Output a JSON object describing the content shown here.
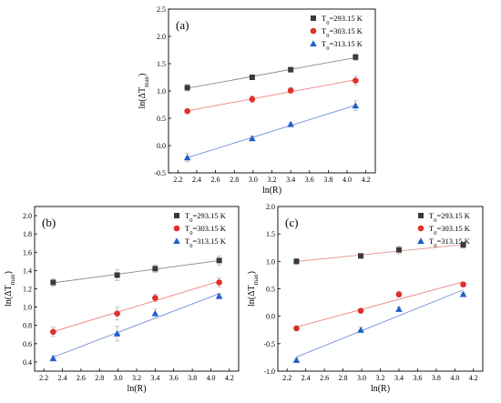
{
  "chart_data": [
    {
      "type": "scatter",
      "panel_label": "(a)",
      "xlabel": "ln(R)",
      "ylabel": "ln(ΔT_max)",
      "xlim": [
        2.1,
        4.3
      ],
      "ylim": [
        -0.5,
        2.5
      ],
      "xticks": [
        2.2,
        2.4,
        2.6,
        2.8,
        3.0,
        3.2,
        3.4,
        3.6,
        3.8,
        4.0,
        4.2
      ],
      "yticks": [
        -0.5,
        0.0,
        0.5,
        1.0,
        1.5,
        2.0,
        2.5
      ],
      "grid": false,
      "legend_position": "top-right",
      "series": [
        {
          "name": "T0=293.15 K",
          "marker": "square",
          "color": "#3a3a3a",
          "line_color": "#8a8a8a",
          "x": [
            2.3,
            2.99,
            3.4,
            4.09
          ],
          "y": [
            1.06,
            1.25,
            1.39,
            1.62
          ],
          "err": [
            0.06,
            0.04,
            0.03,
            0.06
          ]
        },
        {
          "name": "T0=303.15 K",
          "marker": "circle",
          "color": "#e0302a",
          "line_color": "#f08080",
          "x": [
            2.3,
            2.99,
            3.4,
            4.09
          ],
          "y": [
            0.63,
            0.85,
            1.01,
            1.19
          ],
          "err": [
            0.03,
            0.06,
            0.05,
            0.08
          ]
        },
        {
          "name": "T0=313.15 K",
          "marker": "triangle",
          "color": "#1f5fc9",
          "line_color": "#7090d8",
          "x": [
            2.3,
            2.99,
            3.4,
            4.09
          ],
          "y": [
            -0.22,
            0.13,
            0.39,
            0.73
          ],
          "err": [
            0.08,
            0.04,
            0.03,
            0.09
          ]
        }
      ]
    },
    {
      "type": "scatter",
      "panel_label": "(b)",
      "xlabel": "ln(R)",
      "ylabel": "ln(ΔT_max)",
      "xlim": [
        2.1,
        4.3
      ],
      "ylim": [
        0.3,
        2.1
      ],
      "xticks": [
        2.2,
        2.4,
        2.6,
        2.8,
        3.0,
        3.2,
        3.4,
        3.6,
        3.8,
        4.0,
        4.2
      ],
      "yticks": [
        0.4,
        0.6,
        0.8,
        1.0,
        1.2,
        1.4,
        1.6,
        1.8,
        2.0
      ],
      "grid": false,
      "legend_position": "top-right",
      "series": [
        {
          "name": "T0=293.15 K",
          "marker": "square",
          "color": "#3a3a3a",
          "line_color": "#8a8a8a",
          "x": [
            2.3,
            2.99,
            3.4,
            4.09
          ],
          "y": [
            1.27,
            1.35,
            1.42,
            1.51
          ],
          "err": [
            0.04,
            0.06,
            0.04,
            0.05
          ]
        },
        {
          "name": "T0=303.15 K",
          "marker": "circle",
          "color": "#e0302a",
          "line_color": "#f08080",
          "x": [
            2.3,
            2.99,
            3.4,
            4.09
          ],
          "y": [
            0.73,
            0.93,
            1.1,
            1.27
          ],
          "err": [
            0.05,
            0.07,
            0.04,
            0.05
          ]
        },
        {
          "name": "T0=313.15 K",
          "marker": "triangle",
          "color": "#1f5fc9",
          "line_color": "#7090d8",
          "x": [
            2.3,
            2.99,
            3.4,
            4.09
          ],
          "y": [
            0.44,
            0.71,
            0.93,
            1.12
          ],
          "err": [
            0.03,
            0.08,
            0.05,
            0.03
          ]
        }
      ]
    },
    {
      "type": "scatter",
      "panel_label": "(c)",
      "xlabel": "ln(R)",
      "ylabel": "ln(ΔT_max)",
      "xlim": [
        2.1,
        4.3
      ],
      "ylim": [
        -1.0,
        2.0
      ],
      "xticks": [
        2.2,
        2.4,
        2.6,
        2.8,
        3.0,
        3.2,
        3.4,
        3.6,
        3.8,
        4.0,
        4.2
      ],
      "yticks": [
        -1.0,
        -0.5,
        0.0,
        0.5,
        1.0,
        1.5,
        2.0
      ],
      "grid": false,
      "legend_position": "top-right",
      "series": [
        {
          "name": "T0=293.15 K",
          "marker": "square",
          "color": "#3a3a3a",
          "line_color": "#e89090",
          "x": [
            2.3,
            2.99,
            3.4,
            4.09
          ],
          "y": [
            1.0,
            1.1,
            1.21,
            1.3
          ],
          "err": [
            0.05,
            0.04,
            0.07,
            0.06
          ]
        },
        {
          "name": "T0=303.15 K",
          "marker": "circle",
          "color": "#e0302a",
          "line_color": "#f08080",
          "x": [
            2.3,
            2.99,
            3.4,
            4.09
          ],
          "y": [
            -0.22,
            0.1,
            0.4,
            0.58
          ],
          "err": [
            0.04,
            0.03,
            0.05,
            0.04
          ]
        },
        {
          "name": "T0=313.15 K",
          "marker": "triangle",
          "color": "#1f5fc9",
          "line_color": "#7090d8",
          "x": [
            2.3,
            2.99,
            3.4,
            4.09
          ],
          "y": [
            -0.8,
            -0.25,
            0.13,
            0.4
          ],
          "err": [
            0.03,
            0.05,
            0.04,
            0.03
          ]
        }
      ]
    }
  ]
}
